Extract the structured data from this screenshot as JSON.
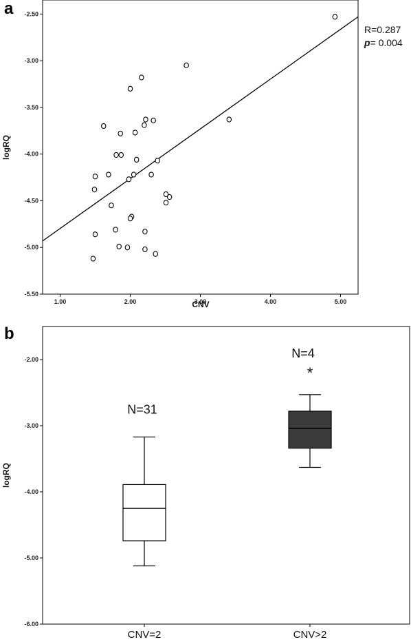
{
  "panel_a": {
    "letter": "a",
    "stats": {
      "r_text": "R=0.287",
      "p_label": "p",
      "p_value": "= 0.004"
    }
  },
  "panel_b": {
    "letter": "b",
    "star": "*"
  },
  "chart_data": [
    {
      "type": "scatter",
      "xlabel": "CNV",
      "ylabel": "logRQ",
      "xlim": [
        0.75,
        5.25
      ],
      "ylim": [
        -5.5,
        -2.35
      ],
      "x_ticks": [
        "1.00",
        "2.00",
        "3.00",
        "4.00",
        "5.00"
      ],
      "y_ticks": [
        "-2.50",
        "-3.00",
        "-3.50",
        "-4.00",
        "-4.50",
        "-5.00",
        "-5.50"
      ],
      "grid": false,
      "points": [
        {
          "x": 4.92,
          "y": -2.53
        },
        {
          "x": 2.8,
          "y": -3.05
        },
        {
          "x": 2.16,
          "y": -3.18
        },
        {
          "x": 2.0,
          "y": -3.3
        },
        {
          "x": 3.41,
          "y": -3.63
        },
        {
          "x": 2.22,
          "y": -3.63
        },
        {
          "x": 2.33,
          "y": -3.64
        },
        {
          "x": 2.2,
          "y": -3.69
        },
        {
          "x": 1.62,
          "y": -3.7
        },
        {
          "x": 1.86,
          "y": -3.78
        },
        {
          "x": 2.07,
          "y": -3.77
        },
        {
          "x": 1.8,
          "y": -4.01
        },
        {
          "x": 1.87,
          "y": -4.01
        },
        {
          "x": 2.09,
          "y": -4.06
        },
        {
          "x": 2.39,
          "y": -4.07
        },
        {
          "x": 1.69,
          "y": -4.22
        },
        {
          "x": 2.05,
          "y": -4.22
        },
        {
          "x": 2.3,
          "y": -4.22
        },
        {
          "x": 1.5,
          "y": -4.24
        },
        {
          "x": 1.98,
          "y": -4.27
        },
        {
          "x": 1.49,
          "y": -4.38
        },
        {
          "x": 2.51,
          "y": -4.43
        },
        {
          "x": 2.56,
          "y": -4.46
        },
        {
          "x": 2.51,
          "y": -4.52
        },
        {
          "x": 1.73,
          "y": -4.55
        },
        {
          "x": 2.02,
          "y": -4.67
        },
        {
          "x": 2.0,
          "y": -4.69
        },
        {
          "x": 1.79,
          "y": -4.81
        },
        {
          "x": 2.21,
          "y": -4.83
        },
        {
          "x": 1.5,
          "y": -4.86
        },
        {
          "x": 1.84,
          "y": -4.99
        },
        {
          "x": 1.96,
          "y": -5.0
        },
        {
          "x": 2.21,
          "y": -5.02
        },
        {
          "x": 2.36,
          "y": -5.07
        },
        {
          "x": 1.47,
          "y": -5.12
        }
      ],
      "fit_line": {
        "x": [
          0.75,
          5.25
        ],
        "y": [
          -4.93,
          -2.53
        ]
      },
      "annotations": [
        "R=0.287",
        "p= 0.004"
      ]
    },
    {
      "type": "box",
      "ylabel": "logRQ",
      "ylim": [
        -6.0,
        -1.5
      ],
      "y_ticks": [
        "-2.00",
        "-3.00",
        "-4.00",
        "-5.00",
        "-6.00"
      ],
      "categories": [
        "CNV=2",
        "CNV>2"
      ],
      "boxes": [
        {
          "category": "CNV=2",
          "n_label": "N=31",
          "whisker_low": -5.12,
          "q1": -4.74,
          "median": -4.25,
          "q3": -3.89,
          "whisker_high": -3.17,
          "fill": "#ffffff"
        },
        {
          "category": "CNV>2",
          "n_label": "N=4",
          "whisker_low": -3.63,
          "q1": -3.34,
          "median": -3.04,
          "q3": -2.78,
          "whisker_high": -2.53,
          "fill": "#3a3a3a"
        }
      ],
      "annotations": [
        "*"
      ]
    }
  ]
}
